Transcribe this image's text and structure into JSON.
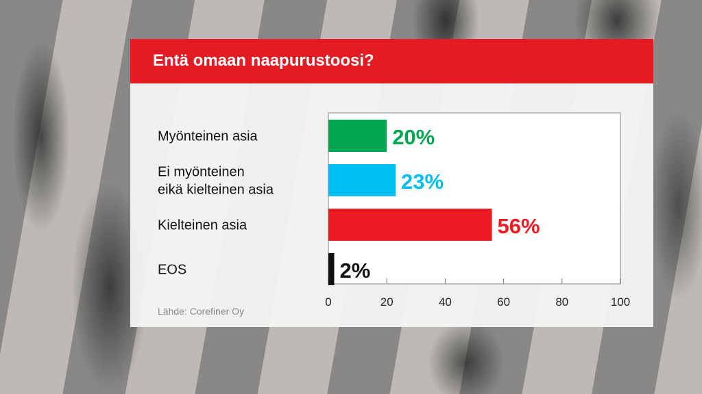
{
  "header": {
    "title": "Entä omaan naapurustoosi?"
  },
  "source": "Lähde: Corefiner Oy",
  "chart_data": {
    "type": "bar",
    "orientation": "horizontal",
    "categories": [
      [
        "Myönteinen asia"
      ],
      [
        "Ei myönteinen",
        "eikä kielteinen asia"
      ],
      [
        "Kielteinen asia"
      ],
      [
        "EOS"
      ]
    ],
    "values": [
      20,
      23,
      56,
      2
    ],
    "value_labels": [
      "20%",
      "23%",
      "56%",
      "2%"
    ],
    "colors": [
      "#00a651",
      "#00bdf2",
      "#ed1c24",
      "#111111"
    ],
    "xlim": [
      0,
      100
    ],
    "xticks": [
      "0",
      "20",
      "40",
      "60",
      "80",
      "100"
    ],
    "grid": false
  }
}
